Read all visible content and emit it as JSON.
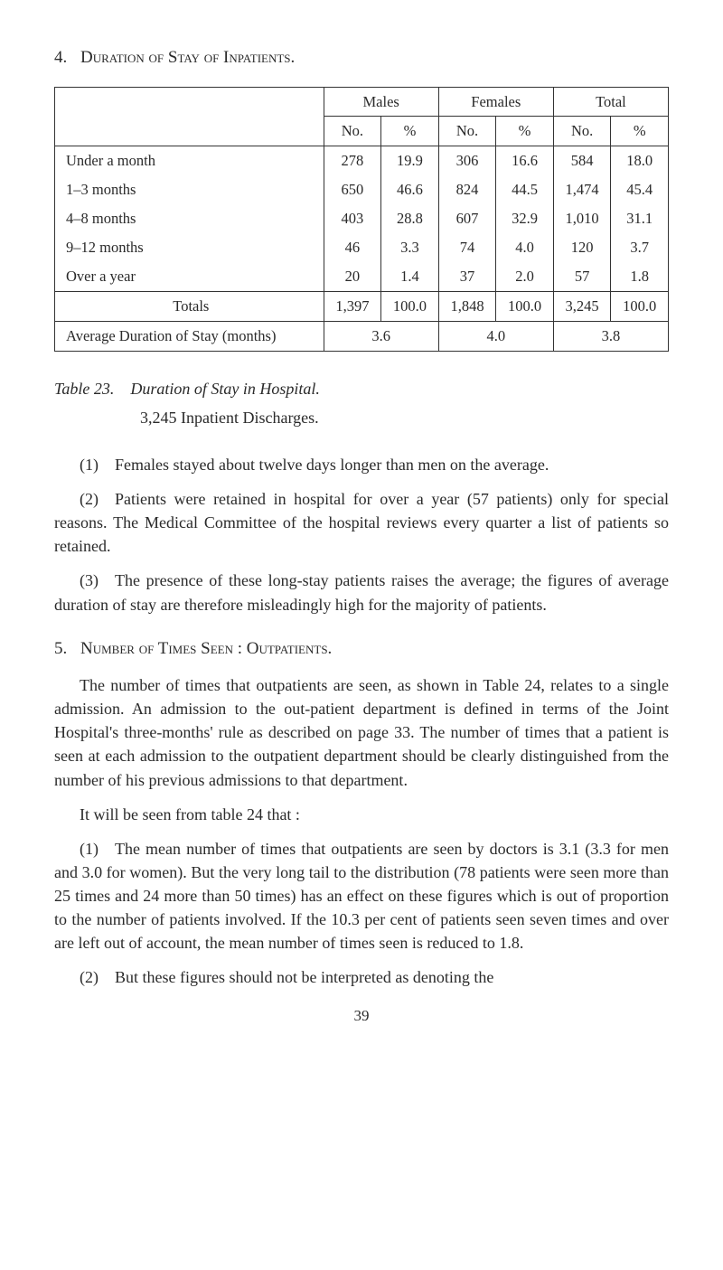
{
  "section4": {
    "number": "4.",
    "title": "Duration of Stay of Inpatients."
  },
  "table": {
    "group_headers": [
      "",
      "Males",
      "Females",
      "Total"
    ],
    "sub_headers": [
      "No.",
      "%",
      "No.",
      "%",
      "No.",
      "%"
    ],
    "rows": [
      {
        "label": "Under a month",
        "cells": [
          "278",
          "19.9",
          "306",
          "16.6",
          "584",
          "18.0"
        ]
      },
      {
        "label": "1–3 months",
        "cells": [
          "650",
          "46.6",
          "824",
          "44.5",
          "1,474",
          "45.4"
        ]
      },
      {
        "label": "4–8 months",
        "cells": [
          "403",
          "28.8",
          "607",
          "32.9",
          "1,010",
          "31.1"
        ]
      },
      {
        "label": "9–12 months",
        "cells": [
          "46",
          "3.3",
          "74",
          "4.0",
          "120",
          "3.7"
        ]
      },
      {
        "label": "Over a year",
        "cells": [
          "20",
          "1.4",
          "37",
          "2.0",
          "57",
          "1.8"
        ]
      }
    ],
    "totals": {
      "label": "Totals",
      "cells": [
        "1,397",
        "100.0",
        "1,848",
        "100.0",
        "3,245",
        "100.0"
      ]
    },
    "average": {
      "label": "Average Duration of Stay (months)",
      "cells": [
        "3.6",
        "4.0",
        "3.8"
      ]
    }
  },
  "caption": {
    "label": "Table 23.",
    "title": "Duration of Stay in Hospital.",
    "sub": "3,245 Inpatient Discharges."
  },
  "paras4": {
    "p1": "(1) Females stayed about twelve days longer than men on the average.",
    "p2": "(2) Patients were retained in hospital for over a year (57 patients) only for special reasons. The Medical Committee of the hospital reviews every quarter a list of patients so retained.",
    "p3": "(3) The presence of these long-stay patients raises the average; the figures of average duration of stay are therefore misleadingly high for the majority of patients."
  },
  "section5": {
    "number": "5.",
    "title": "Number of Times Seen : Outpatients."
  },
  "paras5": {
    "p1": "The number of times that outpatients are seen, as shown in Table 24, relates to a single admission. An admission to the out-patient department is defined in terms of the Joint Hospital's three-months' rule as described on page 33. The number of times that a patient is seen at each admission to the outpatient department should be clearly distinguished from the number of his previous admissions to that department.",
    "lead": "It will be seen from table 24 that :",
    "p2": "(1) The mean number of times that outpatients are seen by doctors is 3.1 (3.3 for men and 3.0 for women). But the very long tail to the distribution (78 patients were seen more than 25 times and 24 more than 50 times) has an effect on these figures which is out of proportion to the number of patients involved. If the 10.3 per cent of patients seen seven times and over are left out of account, the mean number of times seen is reduced to 1.8.",
    "p3": "(2) But these figures should not be interpreted as denoting the"
  },
  "pagenum": "39",
  "colors": {
    "text": "#2a2a2a",
    "border": "#333333",
    "bg": "#ffffff"
  }
}
